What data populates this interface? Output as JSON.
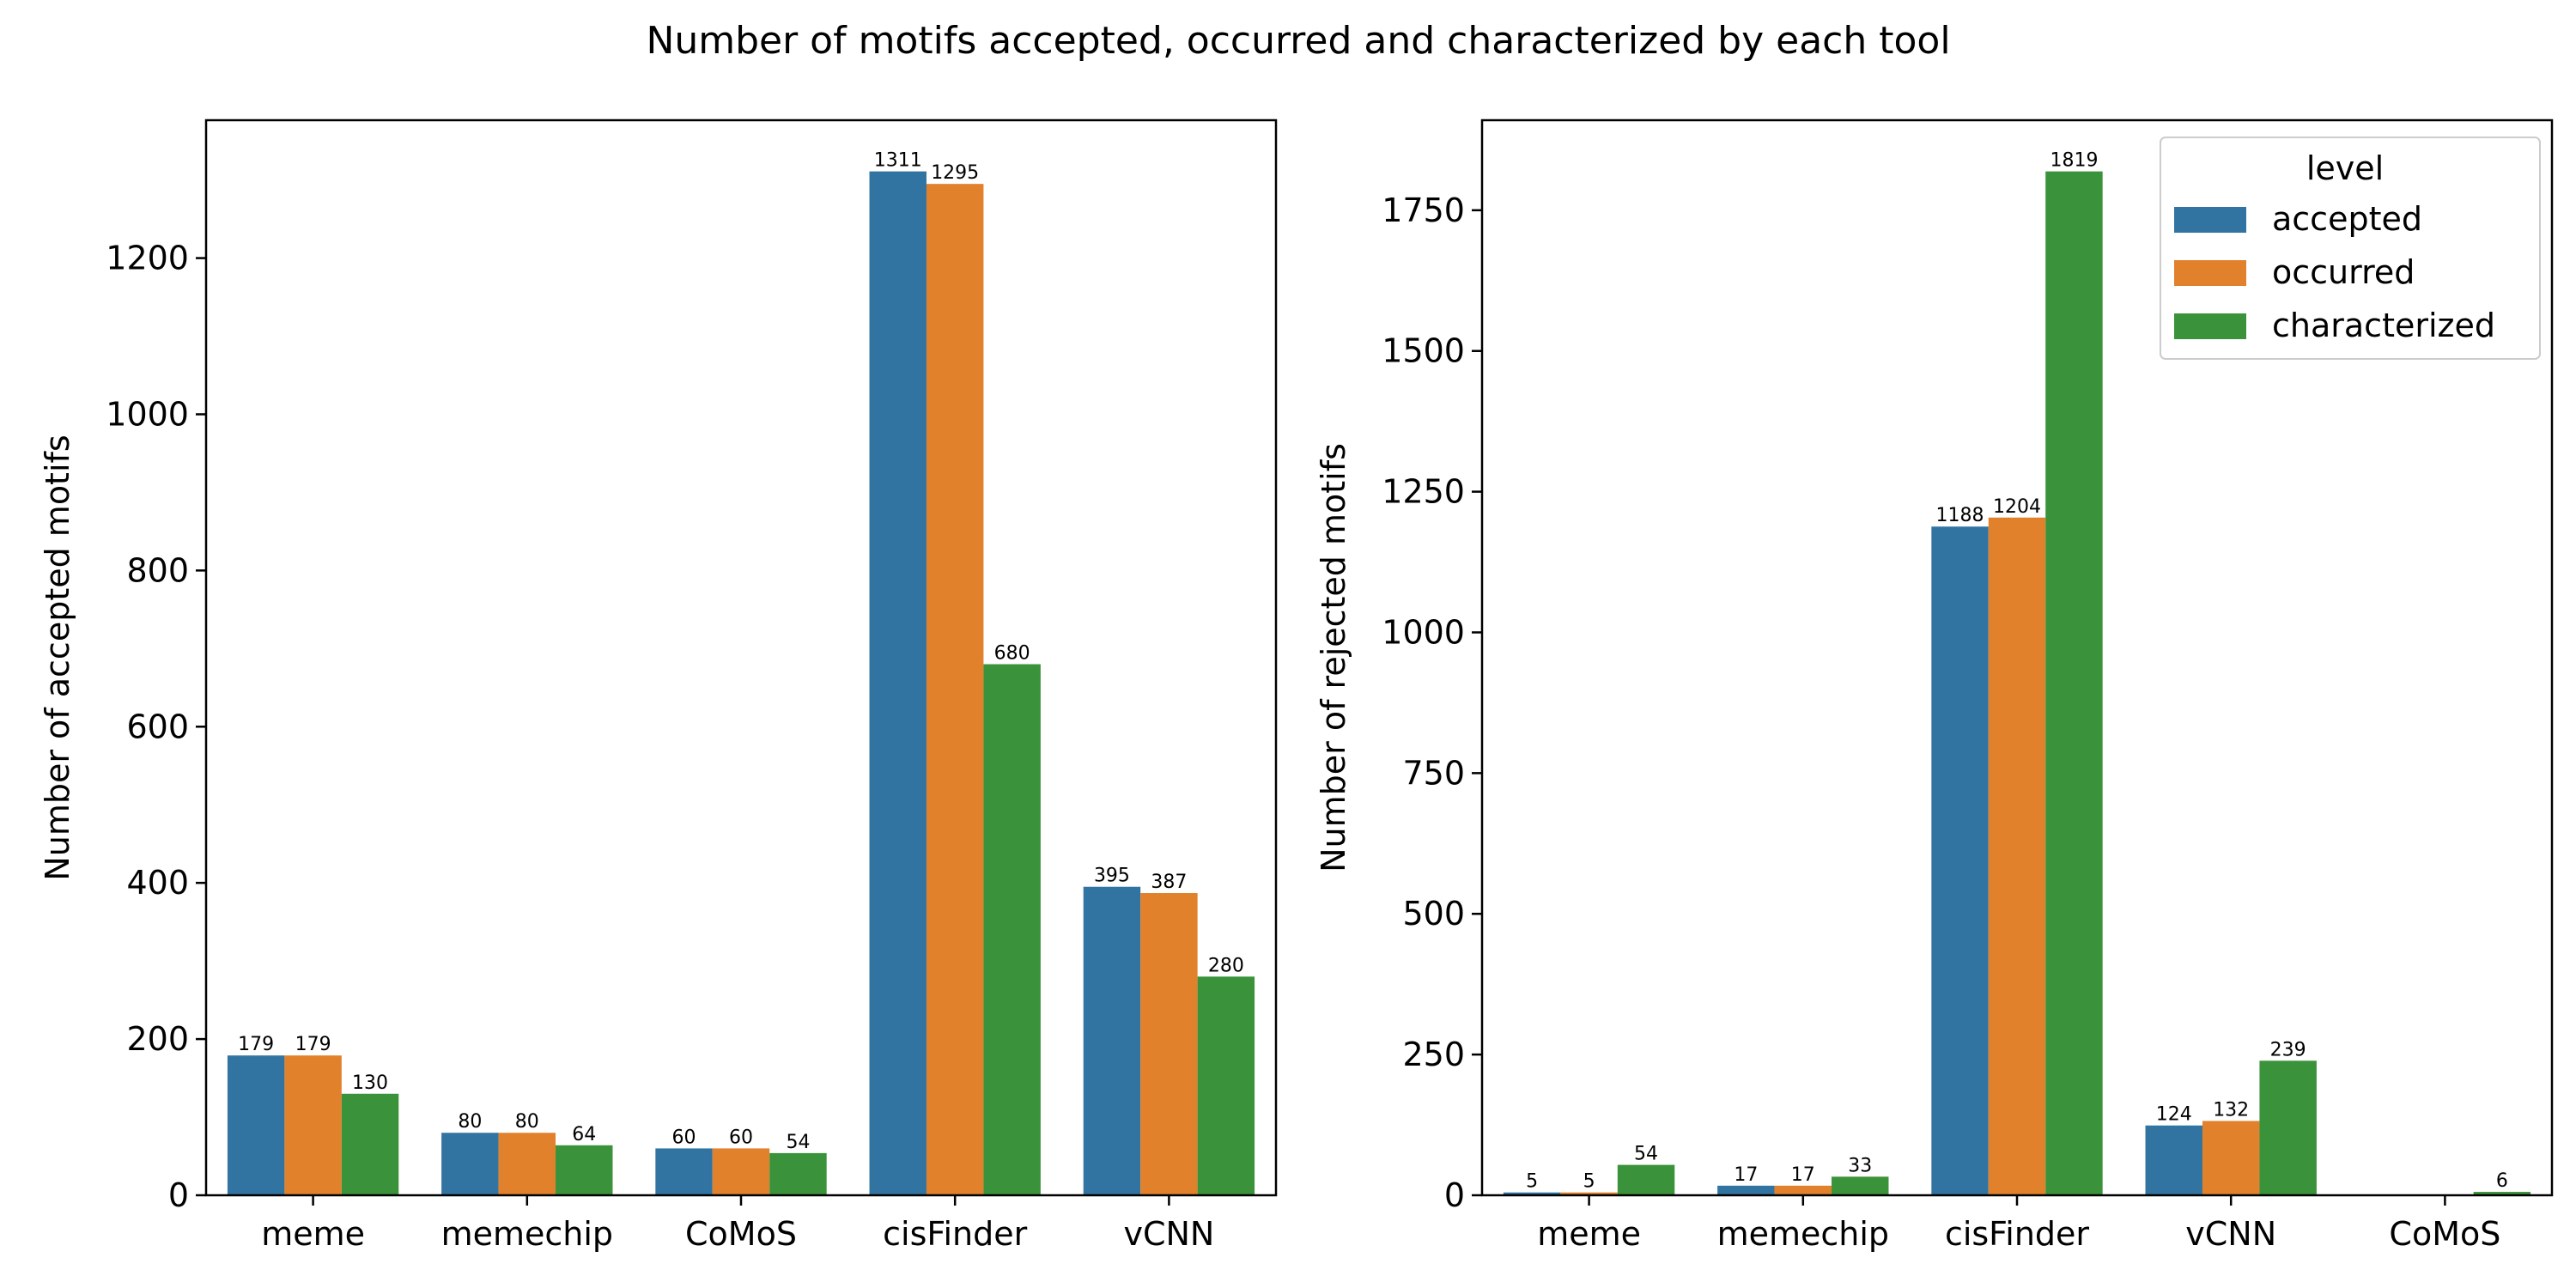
{
  "figure": {
    "title": "Number of motifs accepted, occurred and characterized by each tool"
  },
  "colors": {
    "accepted": "#3274a1",
    "occurred": "#e1812c",
    "characterized": "#3a923a"
  },
  "chart_data": [
    {
      "type": "bar",
      "title": "",
      "xlabel": "",
      "ylabel": "Number of accepted motifs",
      "categories": [
        "meme",
        "memechip",
        "CoMoS",
        "cisFinder",
        "vCNN"
      ],
      "series": [
        {
          "name": "accepted",
          "values": [
            179,
            80,
            60,
            1311,
            395
          ]
        },
        {
          "name": "occurred",
          "values": [
            179,
            80,
            60,
            1295,
            387
          ]
        },
        {
          "name": "characterized",
          "values": [
            130,
            64,
            54,
            680,
            280
          ]
        }
      ],
      "yticks": [
        0,
        200,
        400,
        600,
        800,
        1000,
        1200
      ],
      "ylim": [
        0,
        1376.55
      ],
      "grid": false,
      "legend": null
    },
    {
      "type": "bar",
      "title": "",
      "xlabel": "",
      "ylabel": "Number of rejected motifs",
      "categories": [
        "meme",
        "memechip",
        "cisFinder",
        "vCNN",
        "CoMoS"
      ],
      "series": [
        {
          "name": "accepted",
          "values": [
            5,
            17,
            1188,
            124,
            0
          ]
        },
        {
          "name": "occurred",
          "values": [
            5,
            17,
            1204,
            132,
            0
          ]
        },
        {
          "name": "characterized",
          "values": [
            54,
            33,
            1819,
            239,
            6
          ]
        }
      ],
      "value_labels": [
        [
          "5",
          "17",
          "1188",
          "124",
          ""
        ],
        [
          "5",
          "17",
          "1204",
          "132",
          ""
        ],
        [
          "54",
          "33",
          "1819",
          "239",
          "6"
        ]
      ],
      "yticks": [
        0,
        250,
        500,
        750,
        1000,
        1250,
        1500,
        1750
      ],
      "ylim": [
        0,
        1909.95
      ],
      "grid": false,
      "legend": {
        "title": "level",
        "entries": [
          "accepted",
          "occurred",
          "characterized"
        ],
        "placement": "top-right"
      }
    }
  ]
}
